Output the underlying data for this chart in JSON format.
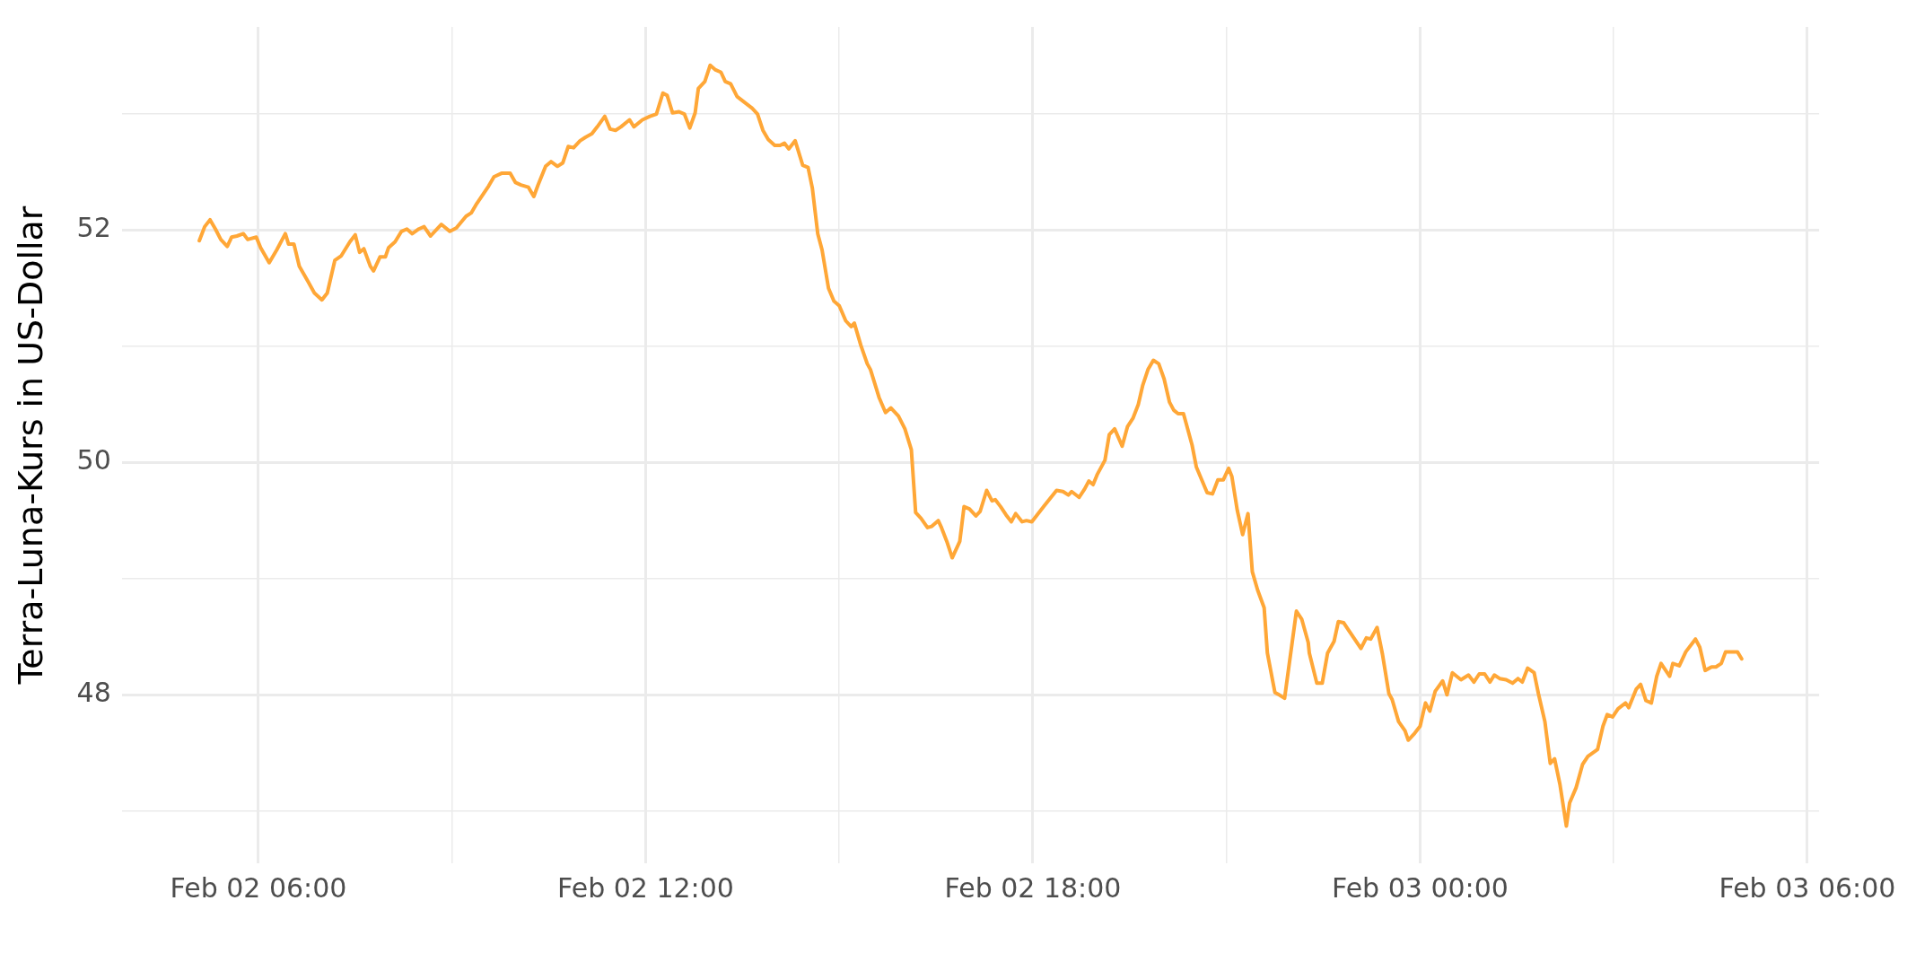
{
  "chart_data": {
    "type": "line",
    "ylabel": "Terra-Luna-Kurs in US-Dollar",
    "color": "#ffa737",
    "grid": true,
    "xlim": [
      "--02-02T03:53",
      "--02-03T06:11"
    ],
    "xticks": [
      {
        "value": "--02-02T06:00",
        "label": "Feb 02 06:00"
      },
      {
        "value": "--02-02T09:00",
        "label": null
      },
      {
        "value": "--02-02T12:00",
        "label": "Feb 02 12:00"
      },
      {
        "value": "--02-02T15:00",
        "label": null
      },
      {
        "value": "--02-02T18:00",
        "label": "Feb 02 18:00"
      },
      {
        "value": "--02-02T21:00",
        "label": null
      },
      {
        "value": "--02-03T00:00",
        "label": "Feb 03 00:00"
      },
      {
        "value": "--02-03T03:00",
        "label": null
      },
      {
        "value": "--02-03T06:00",
        "label": "Feb 03 06:00"
      }
    ],
    "ylim": [
      46.55,
      53.75
    ],
    "yticks": [
      {
        "value": 47,
        "label": null
      },
      48,
      {
        "value": 49,
        "label": null
      },
      50,
      {
        "value": 51,
        "label": null
      },
      52,
      {
        "value": 53,
        "label": null
      }
    ],
    "x": [
      "--02-02T05:05",
      "--02-02T05:10",
      "--02-02T05:15",
      "--02-02T05:20",
      "--02-02T05:25",
      "--02-02T05:31",
      "--02-02T05:35",
      "--02-02T05:40",
      "--02-02T05:46",
      "--02-02T05:50",
      "--02-02T05:58",
      "--02-02T06:02",
      "--02-02T06:10",
      "--02-02T06:17",
      "--02-02T06:25",
      "--02-02T06:28",
      "--02-02T06:33",
      "--02-02T06:38",
      "--02-02T06:46",
      "--02-02T06:52",
      "--02-02T06:59",
      "--02-02T07:04",
      "--02-02T07:11",
      "--02-02T07:17",
      "--02-02T07:25",
      "--02-02T07:30",
      "--02-02T07:34",
      "--02-02T07:38",
      "--02-02T07:44",
      "--02-02T07:47",
      "--02-02T07:53",
      "--02-02T07:58",
      "--02-02T08:01",
      "--02-02T08:07",
      "--02-02T08:13",
      "--02-02T08:18",
      "--02-02T08:23",
      "--02-02T08:29",
      "--02-02T08:34",
      "--02-02T08:40",
      "--02-02T08:50",
      "--02-02T08:58",
      "--02-02T09:04",
      "--02-02T09:13",
      "--02-02T09:18",
      "--02-02T09:23",
      "--02-02T09:34",
      "--02-02T09:39",
      "--02-02T09:46",
      "--02-02T09:54",
      "--02-02T09:59",
      "--02-02T10:04",
      "--02-02T10:11",
      "--02-02T10:16",
      "--02-02T10:20",
      "--02-02T10:27",
      "--02-02T10:32",
      "--02-02T10:38",
      "--02-02T10:43",
      "--02-02T10:48",
      "--02-02T10:53",
      "--02-02T10:59",
      "--02-02T11:04",
      "--02-02T11:10",
      "--02-02T11:15",
      "--02-02T11:22",
      "--02-02T11:27",
      "--02-02T11:32",
      "--02-02T11:37",
      "--02-02T11:45",
      "--02-02T11:49",
      "--02-02T11:57",
      "--02-02T12:04",
      "--02-02T12:10",
      "--02-02T12:16",
      "--02-02T12:20",
      "--02-02T12:25",
      "--02-02T12:31",
      "--02-02T12:36",
      "--02-02T12:41",
      "--02-02T12:46",
      "--02-02T12:49",
      "--02-02T12:55",
      "--02-02T13:00",
      "--02-02T13:05",
      "--02-02T13:10",
      "--02-02T13:14",
      "--02-02T13:19",
      "--02-02T13:25",
      "--02-02T13:32",
      "--02-02T13:39",
      "--02-02T13:44",
      "--02-02T13:49",
      "--02-02T13:54",
      "--02-02T14:00",
      "--02-02T14:05",
      "--02-02T14:09",
      "--02-02T14:13",
      "--02-02T14:19",
      "--02-02T14:26",
      "--02-02T14:31",
      "--02-02T14:35",
      "--02-02T14:40",
      "--02-02T14:44",
      "--02-02T14:50",
      "--02-02T14:55",
      "--02-02T15:00",
      "--02-02T15:06",
      "--02-02T15:11",
      "--02-02T15:14",
      "--02-02T15:20",
      "--02-02T15:26",
      "--02-02T15:29",
      "--02-02T15:37",
      "--02-02T15:43",
      "--02-02T15:48",
      "--02-02T15:55",
      "--02-02T16:01",
      "--02-02T16:07",
      "--02-02T16:11",
      "--02-02T16:16",
      "--02-02T16:22",
      "--02-02T16:26",
      "--02-02T16:32",
      "--02-02T16:35",
      "--02-02T16:40",
      "--02-02T16:45",
      "--02-02T16:52",
      "--02-02T16:56",
      "--02-02T17:01",
      "--02-02T17:07",
      "--02-02T17:11",
      "--02-02T17:17",
      "--02-02T17:22",
      "--02-02T17:25",
      "--02-02T17:30",
      "--02-02T17:35",
      "--02-02T17:40",
      "--02-02T17:44",
      "--02-02T17:50",
      "--02-02T17:54",
      "--02-02T17:59",
      "--02-02T18:04",
      "--02-02T18:10",
      "--02-02T18:16",
      "--02-02T18:22",
      "--02-02T18:28",
      "--02-02T18:33",
      "--02-02T18:36",
      "--02-02T18:43",
      "--02-02T18:48",
      "--02-02T18:52",
      "--02-02T18:56",
      "--02-02T19:00",
      "--02-02T19:07",
      "--02-02T19:11",
      "--02-02T19:16",
      "--02-02T19:23",
      "--02-02T19:28",
      "--02-02T19:33",
      "--02-02T19:38",
      "--02-02T19:42",
      "--02-02T19:47",
      "--02-02T19:52",
      "--02-02T19:57",
      "--02-02T20:02",
      "--02-02T20:07",
      "--02-02T20:11",
      "--02-02T20:15",
      "--02-02T20:20",
      "--02-02T20:23",
      "--02-02T20:28",
      "--02-02T20:32",
      "--02-02T20:37",
      "--02-02T20:42",
      "--02-02T20:47",
      "--02-02T20:52",
      "--02-02T20:57",
      "--02-02T21:02",
      "--02-02T21:05",
      "--02-02T21:10",
      "--02-02T21:15",
      "--02-02T21:20",
      "--02-02T21:24",
      "--02-02T21:29",
      "--02-02T21:35",
      "--02-02T21:38",
      "--02-02T21:45",
      "--02-02T21:49",
      "--02-02T21:54",
      "--02-02T22:05",
      "--02-02T22:10",
      "--02-02T22:16",
      "--02-02T22:17",
      "--02-02T22:24",
      "--02-02T22:29",
      "--02-02T22:34",
      "--02-02T22:40",
      "--02-02T22:44",
      "--02-02T22:49",
      "--02-02T22:54",
      "--02-02T23:05",
      "--02-02T23:10",
      "--02-02T23:14",
      "--02-02T23:20",
      "--02-02T23:25",
      "--02-02T23:31",
      "--02-02T23:34",
      "--02-02T23:40",
      "--02-02T23:46",
      "--02-02T23:49",
      "--02-02T23:55",
      "--02-03T00:00",
      "--02-03T00:05",
      "--02-03T00:09",
      "--02-03T00:14",
      "--02-03T00:21",
      "--02-03T00:25",
      "--02-03T00:30",
      "--02-03T00:38",
      "--02-03T00:45",
      "--02-03T00:50",
      "--02-03T00:55",
      "--02-03T01:00",
      "--02-03T01:05",
      "--02-03T01:09",
      "--02-03T01:14",
      "--02-03T01:20",
      "--02-03T01:26",
      "--02-03T01:31",
      "--02-03T01:35",
      "--02-03T01:40",
      "--02-03T01:46",
      "--02-03T01:50",
      "--02-03T01:56",
      "--02-03T02:01",
      "--02-03T02:05",
      "--02-03T02:10",
      "--02-03T02:16",
      "--02-03T02:19",
      "--02-03T02:25",
      "--02-03T02:31",
      "--02-03T02:36",
      "--02-03T02:45",
      "--02-03T02:50",
      "--02-03T02:54",
      "--02-03T02:59",
      "--02-03T03:04",
      "--02-03T03:11",
      "--02-03T03:14",
      "--02-03T03:21",
      "--02-03T03:25",
      "--02-03T03:30",
      "--02-03T03:35",
      "--02-03T03:40",
      "--02-03T03:44",
      "--02-03T03:52",
      "--02-03T03:55",
      "--02-03T04:01",
      "--02-03T04:07",
      "--02-03T04:16",
      "--02-03T04:20",
      "--02-03T04:25",
      "--02-03T04:31",
      "--02-03T04:35",
      "--02-03T04:40",
      "--02-03T04:44",
      "--02-03T04:49",
      "--02-03T04:55",
      "--02-03T04:59"
    ],
    "values": [
      51.91,
      52.03,
      52.09,
      52.01,
      51.92,
      51.86,
      51.94,
      51.95,
      51.97,
      51.92,
      51.94,
      51.85,
      51.72,
      51.83,
      51.97,
      51.88,
      51.88,
      51.69,
      51.56,
      51.46,
      51.4,
      51.46,
      51.74,
      51.78,
      51.9,
      51.96,
      51.81,
      51.84,
      51.69,
      51.65,
      51.77,
      51.77,
      51.85,
      51.9,
      51.99,
      52.01,
      51.97,
      52.01,
      52.03,
      51.95,
      52.05,
      51.99,
      52.02,
      52.12,
      52.15,
      52.23,
      52.38,
      52.46,
      52.49,
      52.49,
      52.41,
      52.39,
      52.37,
      52.29,
      52.39,
      52.55,
      52.59,
      52.55,
      52.58,
      52.72,
      52.71,
      52.77,
      52.8,
      52.83,
      52.89,
      52.98,
      52.87,
      52.86,
      52.89,
      52.95,
      52.89,
      52.95,
      52.98,
      53.0,
      53.18,
      53.16,
      53.01,
      53.02,
      53.0,
      52.88,
      53.01,
      53.22,
      53.28,
      53.42,
      53.38,
      53.36,
      53.28,
      53.26,
      53.15,
      53.1,
      53.05,
      53.0,
      52.86,
      52.78,
      52.73,
      52.73,
      52.75,
      52.7,
      52.77,
      52.56,
      52.54,
      52.36,
      51.97,
      51.83,
      51.5,
      51.39,
      51.35,
      51.22,
      51.17,
      51.2,
      51.01,
      50.85,
      50.8,
      50.56,
      50.43,
      50.47,
      50.4,
      50.29,
      50.11,
      49.57,
      49.52,
      49.44,
      49.45,
      49.5,
      49.44,
      49.32,
      49.18,
      49.32,
      49.62,
      49.6,
      49.54,
      49.58,
      49.76,
      49.67,
      49.68,
      49.62,
      49.55,
      49.49,
      49.56,
      49.49,
      49.5,
      49.49,
      49.55,
      49.62,
      49.69,
      49.76,
      49.75,
      49.72,
      49.75,
      49.7,
      49.77,
      49.84,
      49.81,
      49.9,
      50.02,
      50.24,
      50.29,
      50.14,
      50.31,
      50.38,
      50.5,
      50.66,
      50.8,
      50.88,
      50.85,
      50.72,
      50.52,
      50.45,
      50.42,
      50.42,
      50.32,
      50.15,
      49.96,
      49.85,
      49.74,
      49.73,
      49.85,
      49.85,
      49.95,
      49.88,
      49.59,
      49.38,
      49.56,
      49.06,
      48.9,
      48.75,
      48.36,
      48.02,
      48.0,
      47.97,
      48.72,
      48.65,
      48.45,
      48.36,
      48.1,
      48.1,
      48.36,
      48.46,
      48.63,
      48.62,
      48.55,
      48.4,
      48.49,
      48.48,
      48.58,
      48.35,
      48.01,
      47.96,
      47.77,
      47.69,
      47.61,
      47.67,
      47.73,
      47.93,
      47.86,
      48.03,
      48.12,
      48.0,
      48.19,
      48.13,
      48.17,
      48.11,
      48.18,
      48.18,
      48.11,
      48.17,
      48.14,
      48.13,
      48.1,
      48.14,
      48.11,
      48.23,
      48.19,
      48.01,
      47.77,
      47.41,
      47.45,
      47.23,
      46.87,
      47.07,
      47.2,
      47.4,
      47.47,
      47.53,
      47.73,
      47.83,
      47.81,
      47.88,
      47.93,
      47.89,
      48.05,
      48.09,
      47.95,
      47.93,
      48.16,
      48.27,
      48.16,
      48.27,
      48.25,
      48.37,
      48.48,
      48.41,
      48.21,
      48.24,
      48.24,
      48.27,
      48.37,
      48.37,
      48.37,
      48.31
    ]
  }
}
